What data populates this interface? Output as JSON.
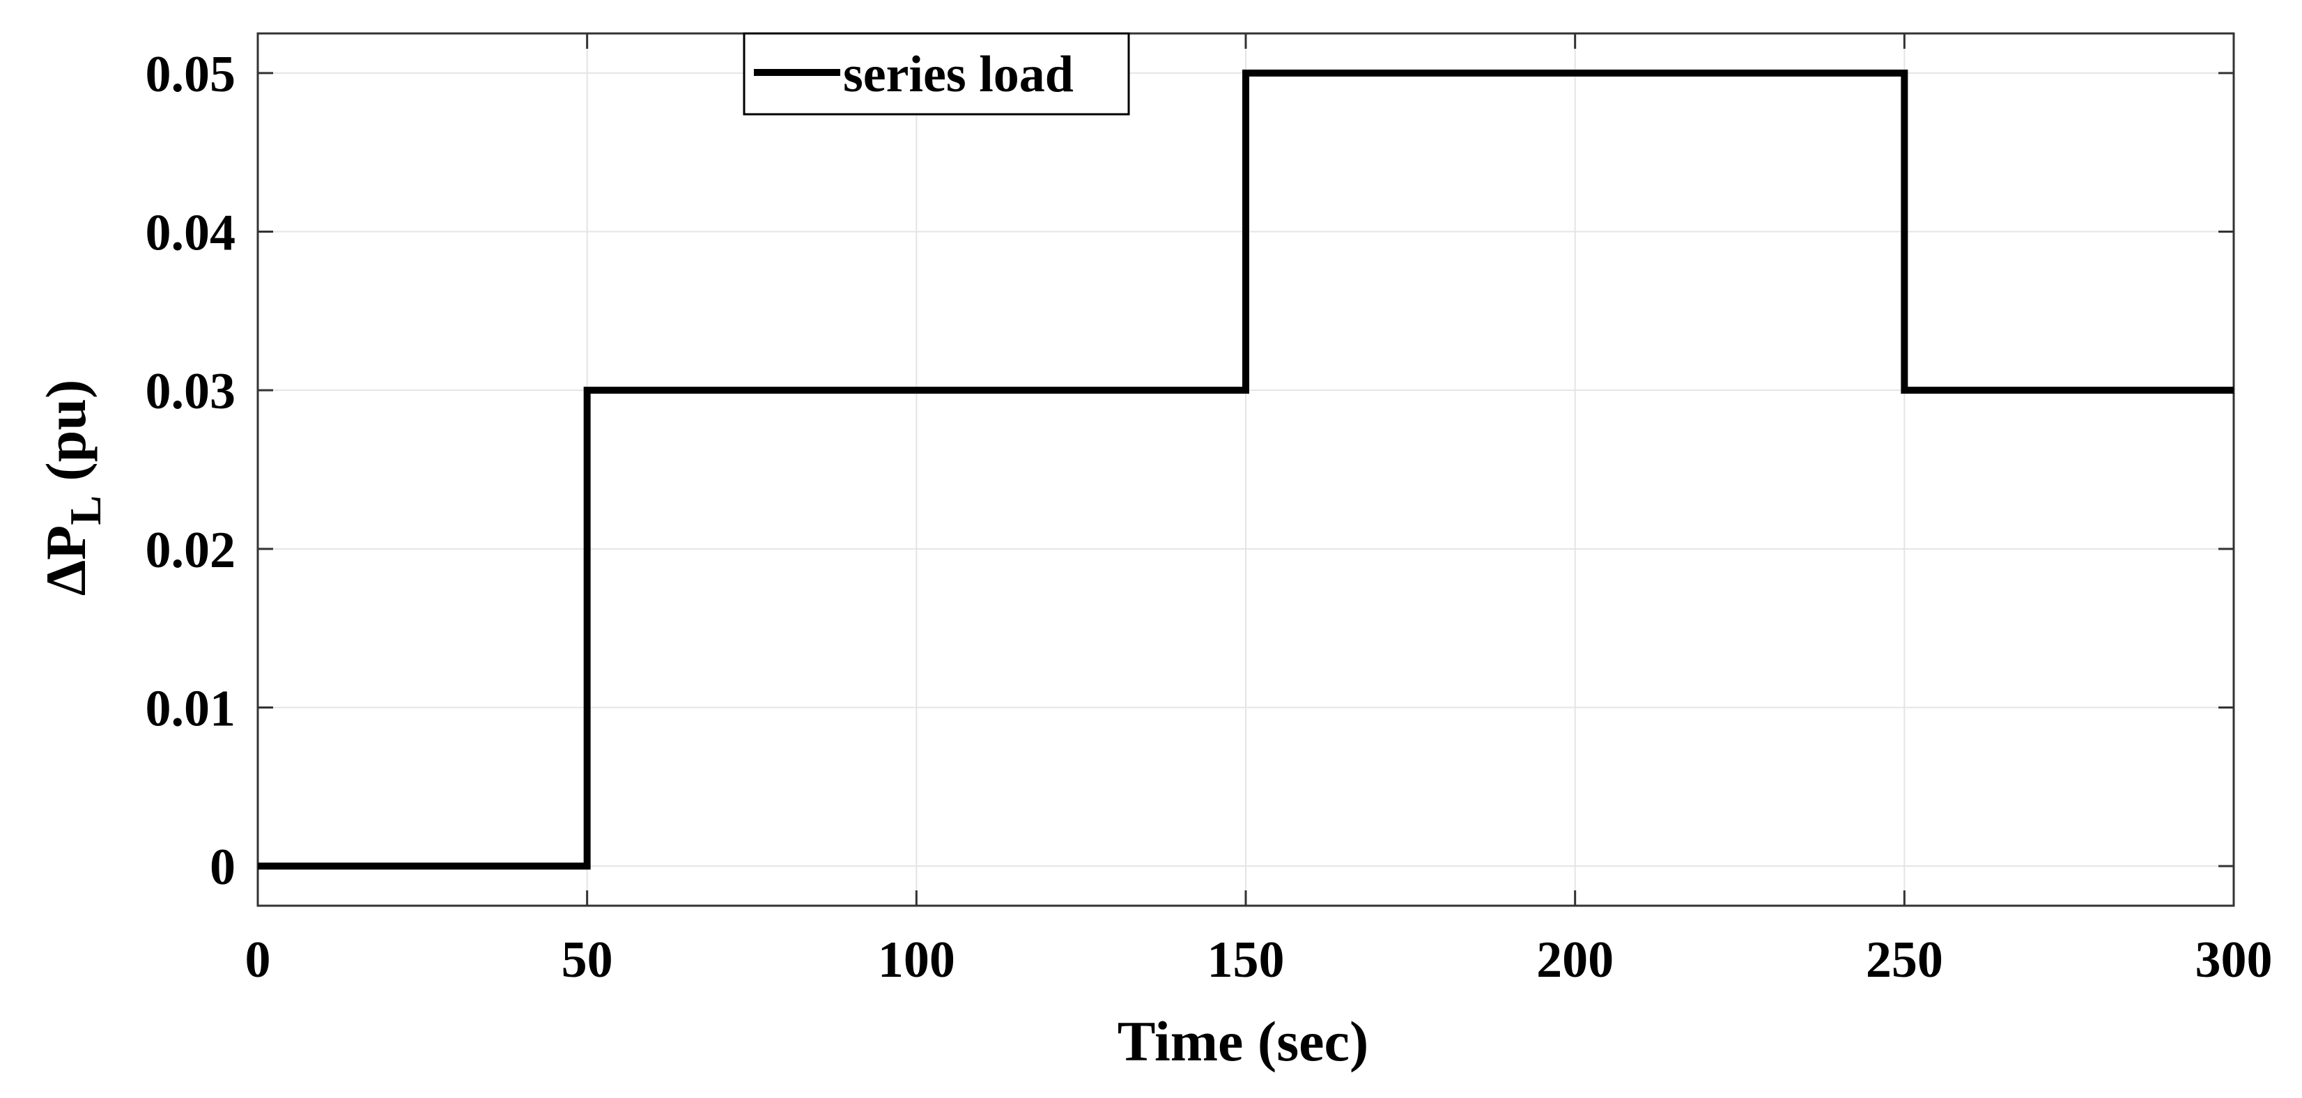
{
  "chart_data": {
    "type": "line",
    "title": "",
    "xlabel": "Time (sec)",
    "ylabel_main": "ΔP",
    "ylabel_sub": "L",
    "ylabel_unit": " (pu)",
    "xlim": [
      0,
      300
    ],
    "ylim": [
      -0.0025,
      0.0525
    ],
    "xticks": [
      0,
      50,
      100,
      150,
      200,
      250,
      300
    ],
    "xtick_labels": [
      "0",
      "50",
      "100",
      "150",
      "200",
      "250",
      "300"
    ],
    "yticks": [
      0,
      0.01,
      0.02,
      0.03,
      0.04,
      0.05
    ],
    "ytick_labels": [
      "0",
      "0.01",
      "0.02",
      "0.03",
      "0.04",
      "0.05"
    ],
    "grid": true,
    "legend_position": "top-center",
    "series": [
      {
        "name": "series load",
        "color": "#000000",
        "x": [
          0,
          50,
          50,
          150,
          150,
          250,
          250,
          300
        ],
        "y": [
          0,
          0,
          0.03,
          0.03,
          0.05,
          0.05,
          0.03,
          0.03
        ]
      }
    ]
  }
}
